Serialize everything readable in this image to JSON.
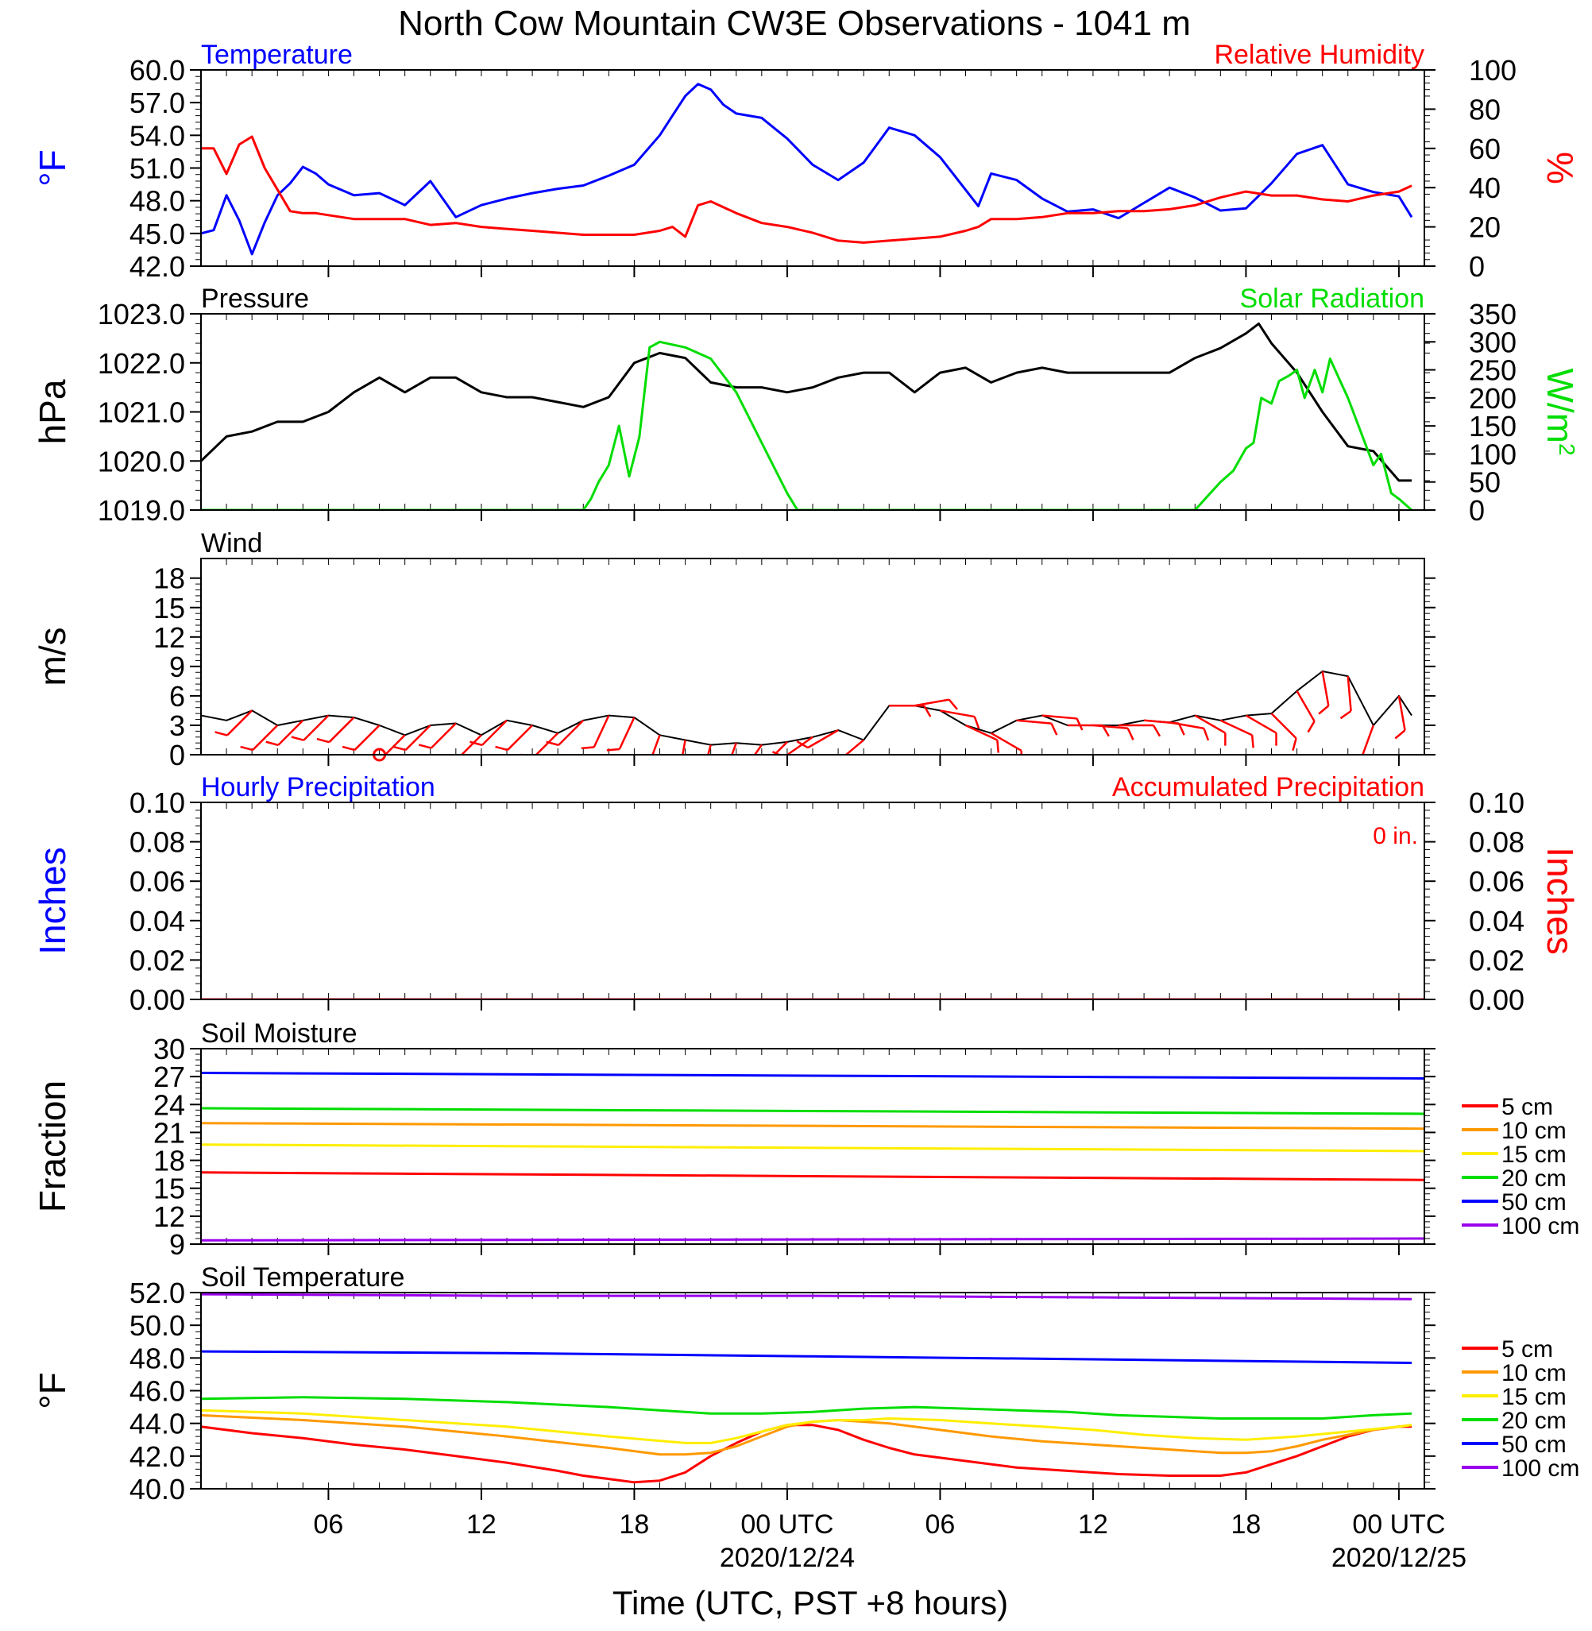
{
  "title": "North Cow Mountain CW3E Observations - 1041 m",
  "xlabel": "Time (UTC, PST +8 hours)",
  "x_ticks": [
    {
      "h": 6,
      "label": "06"
    },
    {
      "h": 12,
      "label": "12"
    },
    {
      "h": 18,
      "label": "18"
    },
    {
      "h": 24,
      "label": "00 UTC",
      "date": "2020/12/24"
    },
    {
      "h": 30,
      "label": "06"
    },
    {
      "h": 36,
      "label": "12"
    },
    {
      "h": 42,
      "label": "18"
    },
    {
      "h": 48,
      "label": "00 UTC",
      "date": "2020/12/25"
    }
  ],
  "x_range_hours": [
    1,
    49
  ],
  "colors": {
    "blue": "#0000ff",
    "red": "#ff0000",
    "green": "#00dd00",
    "black": "#000000",
    "orange": "#ff9900",
    "yellow": "#ffee00",
    "purple": "#9900ee"
  },
  "chart_data": [
    {
      "type": "line",
      "title_left": "Temperature",
      "title_right": "Relative Humidity",
      "ylabel_left": "°F",
      "ylabel_right": "%",
      "ylim_left": [
        42,
        60
      ],
      "ylim_right": [
        0,
        100
      ],
      "yticks_left": [
        "42.0",
        "45.0",
        "48.0",
        "51.0",
        "54.0",
        "57.0",
        "60.0"
      ],
      "yticks_right": [
        "0",
        "20",
        "40",
        "60",
        "80",
        "100"
      ],
      "x": [
        1,
        1.5,
        2,
        2.5,
        3,
        3.5,
        4,
        4.5,
        5,
        5.5,
        6,
        7,
        8,
        9,
        10,
        11,
        12,
        13,
        14,
        15,
        16,
        17,
        18,
        19,
        19.5,
        20,
        20.5,
        21,
        21.5,
        22,
        23,
        24,
        25,
        26,
        27,
        28,
        29,
        30,
        31,
        31.5,
        32,
        33,
        34,
        35,
        36,
        37,
        38,
        39,
        40,
        41,
        42,
        43,
        44,
        45,
        46,
        47,
        48,
        48.5
      ],
      "series": [
        {
          "name": "Temperature",
          "axis": "left",
          "color": "blue",
          "values": [
            45,
            45.3,
            48.5,
            46.2,
            43.1,
            46,
            48.5,
            49.6,
            51.1,
            50.5,
            49.5,
            48.5,
            48.7,
            47.6,
            49.8,
            46.5,
            47.6,
            48.2,
            48.7,
            49.1,
            49.4,
            50.3,
            51.3,
            54,
            55.8,
            57.6,
            58.7,
            58.2,
            56.8,
            56,
            55.6,
            53.7,
            51.3,
            49.9,
            51.5,
            54.7,
            54,
            52,
            49,
            47.5,
            50.5,
            49.9,
            48.2,
            47,
            47.2,
            46.4,
            47.8,
            49.2,
            48.3,
            47.1,
            47.3,
            49.6,
            52.3,
            53.1,
            49.5,
            48.8,
            48.4,
            46.5
          ]
        },
        {
          "name": "Relative Humidity",
          "axis": "right",
          "color": "red",
          "values": [
            60,
            60,
            47,
            62,
            66,
            50,
            39,
            28,
            27,
            27,
            26,
            24,
            24,
            24,
            21,
            22,
            20,
            19,
            18,
            17,
            16,
            16,
            16,
            18,
            20,
            15,
            31,
            33,
            30,
            27,
            22,
            20,
            17,
            13,
            12,
            13,
            14,
            15,
            18,
            20,
            24,
            24,
            25,
            27,
            27,
            28,
            28,
            29,
            31,
            35,
            38,
            36,
            36,
            34,
            33,
            36,
            38,
            41
          ]
        }
      ]
    },
    {
      "type": "line",
      "title_left": "Pressure",
      "title_right": "Solar Radiation",
      "ylabel_left": "hPa",
      "ylabel_right": "W/m",
      "ylim_left": [
        1019,
        1023
      ],
      "ylim_right": [
        0,
        350
      ],
      "yticks_left": [
        "1019.0",
        "1020.0",
        "1021.0",
        "1022.0",
        "1023.0"
      ],
      "yticks_right": [
        "0",
        "50",
        "100",
        "150",
        "200",
        "250",
        "300",
        "350"
      ],
      "series": [
        {
          "name": "Pressure",
          "axis": "left",
          "color": "black",
          "x": [
            1,
            2,
            3,
            4,
            5,
            6,
            7,
            8,
            9,
            10,
            11,
            12,
            13,
            14,
            15,
            16,
            17,
            18,
            19,
            20,
            21,
            22,
            23,
            24,
            25,
            26,
            27,
            28,
            29,
            30,
            31,
            32,
            33,
            34,
            35,
            36,
            37,
            38,
            39,
            40,
            41,
            42,
            42.5,
            43,
            44,
            45,
            46,
            47,
            48,
            48.5
          ],
          "values": [
            1020,
            1020.5,
            1020.6,
            1020.8,
            1020.8,
            1021,
            1021.4,
            1021.7,
            1021.4,
            1021.7,
            1021.7,
            1021.4,
            1021.3,
            1021.3,
            1021.2,
            1021.1,
            1021.3,
            1022,
            1022.2,
            1022.1,
            1021.6,
            1021.5,
            1021.5,
            1021.4,
            1021.5,
            1021.7,
            1021.8,
            1021.8,
            1021.4,
            1021.8,
            1021.9,
            1021.6,
            1021.8,
            1021.9,
            1021.8,
            1021.8,
            1021.8,
            1021.8,
            1021.8,
            1022.1,
            1022.3,
            1022.6,
            1022.8,
            1022.4,
            1021.8,
            1021,
            1020.3,
            1020.2,
            1019.6,
            1019.6
          ]
        },
        {
          "name": "Solar Radiation",
          "axis": "right",
          "color": "green",
          "x": [
            1,
            16,
            16.3,
            16.6,
            17,
            17.4,
            17.8,
            18.2,
            18.6,
            19,
            20,
            21,
            22,
            23,
            24,
            24.4,
            40,
            41,
            41.5,
            42,
            42.3,
            42.6,
            43,
            43.3,
            43.7,
            44,
            44.3,
            44.7,
            45,
            45.3,
            45.7,
            46,
            46.5,
            47,
            47.3,
            47.7,
            48,
            48.5
          ],
          "values": [
            0,
            0,
            20,
            50,
            80,
            150,
            60,
            130,
            290,
            300,
            290,
            270,
            210,
            120,
            30,
            0,
            0,
            50,
            70,
            110,
            120,
            200,
            190,
            230,
            240,
            250,
            200,
            250,
            210,
            270,
            230,
            200,
            140,
            80,
            100,
            30,
            20,
            0
          ]
        }
      ]
    },
    {
      "type": "line",
      "title_left": "Wind",
      "ylabel_left": "m/s",
      "ylim_left": [
        0,
        20
      ],
      "yticks_left": [
        "0",
        "3",
        "6",
        "9",
        "12",
        "15",
        "18"
      ],
      "series": [
        {
          "name": "Wind speed",
          "color": "black",
          "x": [
            1,
            2,
            3,
            4,
            5,
            6,
            7,
            8,
            9,
            10,
            11,
            12,
            13,
            14,
            15,
            16,
            17,
            18,
            19,
            20,
            21,
            22,
            23,
            24,
            25,
            26,
            27,
            28,
            29,
            30,
            31,
            32,
            33,
            34,
            35,
            36,
            37,
            38,
            39,
            40,
            41,
            42,
            43,
            44,
            45,
            46,
            47,
            48,
            48.5
          ],
          "values": [
            4,
            3.5,
            4.5,
            3,
            3.5,
            4,
            3.8,
            3,
            2,
            3,
            3.2,
            2,
            3.5,
            3,
            2.2,
            3.5,
            4,
            3.8,
            2,
            1.5,
            1,
            1.2,
            1,
            1.3,
            1.8,
            2.5,
            1.5,
            5,
            5,
            4.5,
            3,
            2.2,
            3.5,
            4,
            3,
            3,
            3,
            3.5,
            3.3,
            4,
            3.5,
            4,
            4.2,
            6.5,
            8.5,
            8,
            3,
            6,
            4
          ]
        },
        {
          "name": "Wind barbs",
          "color": "red",
          "x": [
            3,
            4,
            5,
            6,
            7,
            8,
            9,
            10,
            11,
            12,
            13,
            14,
            15,
            16,
            17,
            18,
            19,
            20,
            21,
            22,
            23,
            24,
            25,
            26,
            27,
            28,
            29,
            30,
            31,
            32,
            33,
            34,
            35,
            36,
            37,
            38,
            39,
            40,
            41,
            42,
            43,
            44,
            45,
            46,
            47,
            48
          ],
          "values": [
            225,
            225,
            225,
            225,
            225,
            225,
            225,
            225,
            225,
            225,
            225,
            225,
            225,
            225,
            205,
            205,
            200,
            190,
            195,
            200,
            215,
            225,
            235,
            240,
            230,
            90,
            80,
            100,
            115,
            120,
            95,
            95,
            90,
            95,
            90,
            95,
            100,
            120,
            115,
            120,
            135,
            150,
            170,
            175,
            200,
            170
          ]
        }
      ]
    },
    {
      "type": "line",
      "title_left": "Hourly Precipitation",
      "title_right": "Accumulated Precipitation",
      "annotation": "0 in.",
      "ylabel_left": "Inches",
      "ylabel_right": "Inches",
      "ylim_left": [
        0,
        0.1
      ],
      "ylim_right": [
        0,
        0.1
      ],
      "yticks_left": [
        "0.00",
        "0.02",
        "0.04",
        "0.06",
        "0.08",
        "0.10"
      ],
      "yticks_right": [
        "0.00",
        "0.02",
        "0.04",
        "0.06",
        "0.08",
        "0.10"
      ],
      "series": [
        {
          "name": "Hourly Precipitation",
          "color": "blue",
          "x": [
            1,
            49
          ],
          "values": [
            0,
            0
          ]
        },
        {
          "name": "Accumulated Precipitation",
          "color": "red",
          "x": [
            1,
            49
          ],
          "values": [
            0,
            0
          ]
        }
      ]
    },
    {
      "type": "line",
      "title_left": "Soil Moisture",
      "ylabel_left": "Fraction",
      "ylim_left": [
        9,
        30
      ],
      "yticks_left": [
        "9",
        "12",
        "15",
        "18",
        "21",
        "24",
        "27",
        "30"
      ],
      "legend": "right",
      "series": [
        {
          "name": "5 cm",
          "color": "red",
          "x": [
            1,
            49
          ],
          "values": [
            16.7,
            15.9
          ]
        },
        {
          "name": "10 cm",
          "color": "orange",
          "x": [
            1,
            49
          ],
          "values": [
            22,
            21.4
          ]
        },
        {
          "name": "15 cm",
          "color": "yellow",
          "x": [
            1,
            49
          ],
          "values": [
            19.7,
            19
          ]
        },
        {
          "name": "20 cm",
          "color": "green",
          "x": [
            1,
            49
          ],
          "values": [
            23.6,
            23
          ]
        },
        {
          "name": "50 cm",
          "color": "blue",
          "x": [
            1,
            49
          ],
          "values": [
            27.4,
            26.8
          ]
        },
        {
          "name": "100 cm",
          "color": "purple",
          "x": [
            1,
            49
          ],
          "values": [
            9.4,
            9.6
          ]
        }
      ]
    },
    {
      "type": "line",
      "title_left": "Soil Temperature",
      "ylabel_left": "°F",
      "ylim_left": [
        40,
        52
      ],
      "yticks_left": [
        "40.0",
        "42.0",
        "44.0",
        "46.0",
        "48.0",
        "50.0",
        "52.0"
      ],
      "legend": "right",
      "series": [
        {
          "name": "5 cm",
          "color": "red",
          "x": [
            1,
            3,
            5,
            7,
            9,
            11,
            13,
            15,
            16,
            17,
            18,
            19,
            20,
            21,
            22,
            23,
            24,
            25,
            26,
            27,
            28,
            29,
            30,
            31,
            33,
            35,
            37,
            39,
            40,
            41,
            42,
            43,
            44,
            45,
            46,
            47,
            48,
            48.5
          ],
          "values": [
            43.8,
            43.4,
            43.1,
            42.7,
            42.4,
            42,
            41.6,
            41.1,
            40.8,
            40.6,
            40.4,
            40.5,
            41,
            42,
            42.8,
            43.5,
            43.9,
            43.9,
            43.6,
            43,
            42.5,
            42.1,
            41.9,
            41.7,
            41.3,
            41.1,
            40.9,
            40.8,
            40.8,
            40.8,
            41,
            41.5,
            42,
            42.6,
            43.2,
            43.6,
            43.8,
            43.8
          ]
        },
        {
          "name": "10 cm",
          "color": "orange",
          "x": [
            1,
            5,
            9,
            13,
            17,
            19,
            20,
            21,
            22,
            23,
            24,
            25,
            26,
            28,
            30,
            32,
            34,
            36,
            38,
            40,
            41,
            42,
            43,
            44,
            45,
            46,
            47,
            48,
            48.5
          ],
          "values": [
            44.5,
            44.2,
            43.8,
            43.2,
            42.5,
            42.1,
            42.1,
            42.2,
            42.6,
            43.2,
            43.8,
            44.1,
            44.2,
            44,
            43.6,
            43.2,
            42.9,
            42.7,
            42.5,
            42.3,
            42.2,
            42.2,
            42.3,
            42.6,
            43,
            43.3,
            43.6,
            43.8,
            43.9
          ]
        },
        {
          "name": "15 cm",
          "color": "yellow",
          "x": [
            1,
            5,
            9,
            13,
            17,
            20,
            21,
            22,
            23,
            24,
            25,
            26,
            27,
            28,
            30,
            32,
            34,
            36,
            38,
            40,
            42,
            44,
            46,
            48,
            48.5
          ],
          "values": [
            44.8,
            44.6,
            44.2,
            43.8,
            43.2,
            42.8,
            42.8,
            43.1,
            43.5,
            43.9,
            44.1,
            44.2,
            44.2,
            44.3,
            44.2,
            44,
            43.8,
            43.6,
            43.3,
            43.1,
            43,
            43.2,
            43.5,
            43.8,
            43.9
          ]
        },
        {
          "name": "20 cm",
          "color": "green",
          "x": [
            1,
            5,
            9,
            13,
            17,
            19,
            21,
            23,
            25,
            27,
            29,
            31,
            33,
            35,
            37,
            39,
            41,
            43,
            45,
            47,
            48.5
          ],
          "values": [
            45.5,
            45.6,
            45.5,
            45.3,
            45,
            44.8,
            44.6,
            44.6,
            44.7,
            44.9,
            45,
            44.9,
            44.8,
            44.7,
            44.5,
            44.4,
            44.3,
            44.3,
            44.3,
            44.5,
            44.6
          ]
        },
        {
          "name": "50 cm",
          "color": "blue",
          "x": [
            1,
            13,
            25,
            37,
            48.5
          ],
          "values": [
            48.4,
            48.3,
            48.1,
            47.9,
            47.7
          ]
        },
        {
          "name": "100 cm",
          "color": "purple",
          "x": [
            1,
            13,
            25,
            37,
            48.5
          ],
          "values": [
            51.9,
            51.8,
            51.8,
            51.7,
            51.6
          ]
        }
      ]
    }
  ]
}
